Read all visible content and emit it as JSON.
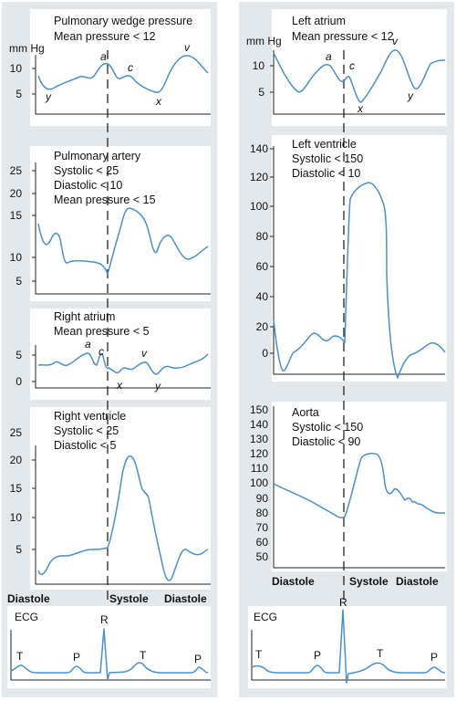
{
  "colors": {
    "panel": "#e3e8ec",
    "plot": "#ffffff",
    "trace": "#4a8fcc",
    "axis": "#222222",
    "dash": "#222222"
  },
  "left": {
    "wedge": {
      "title": [
        "Pulmonary wedge pressure",
        "Mean pressure < 12"
      ],
      "unit": "mm Hg",
      "ticks": [
        "10",
        "5"
      ],
      "waves": [
        "a",
        "c",
        "v",
        "y",
        "x"
      ]
    },
    "pa": {
      "title": [
        "Pulmonary artery",
        "Systolic < 25",
        "Diastolic < 10",
        "Mean pressure < 15"
      ],
      "ticks": [
        "25",
        "20",
        "15",
        "10",
        "5"
      ]
    },
    "ra": {
      "title": [
        "Right atrium",
        "Mean pressure < 5"
      ],
      "ticks": [
        "5",
        "0"
      ],
      "waves": [
        "a",
        "c",
        "v",
        "x",
        "y"
      ]
    },
    "rv": {
      "title": [
        "Right ventricle",
        "Systolic < 25",
        "Diastolic < 5"
      ],
      "ticks": [
        "25",
        "20",
        "15",
        "10",
        "5"
      ]
    },
    "phases": [
      "Diastole",
      "Systole",
      "Diastole"
    ],
    "ecg": {
      "title": "ECG",
      "waves": [
        "R",
        "T",
        "P",
        "T",
        "P"
      ]
    }
  },
  "right": {
    "la": {
      "title": [
        "Left atrium",
        "Mean pressure < 12"
      ],
      "unit": "mm Hg",
      "ticks": [
        "10",
        "5"
      ],
      "waves": [
        "a",
        "c",
        "v",
        "x",
        "y"
      ]
    },
    "lv": {
      "title": [
        "Left ventricle",
        "Systolic < 150",
        "Diastolic < 10"
      ],
      "ticks": [
        "140",
        "120",
        "100",
        "80",
        "60",
        "40",
        "20",
        "0"
      ]
    },
    "ao": {
      "title": [
        "Aorta",
        "Systolic < 150",
        "Diastolic < 90"
      ],
      "ticks": [
        "150",
        "140",
        "130",
        "120",
        "110",
        "100",
        "90",
        "80",
        "70",
        "60",
        "50"
      ]
    },
    "phases": [
      "Diastole",
      "Systole",
      "Diastole"
    ],
    "ecg": {
      "title": "ECG",
      "waves": [
        "R",
        "T",
        "P",
        "T",
        "P"
      ]
    }
  }
}
